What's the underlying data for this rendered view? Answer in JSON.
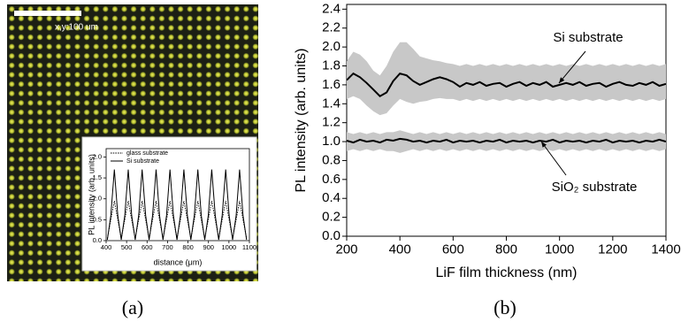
{
  "chart_data": [
    {
      "type": "line",
      "panel_label": "(a)",
      "scale_bar_label": "x,y:100 um",
      "xlabel": "distance (μm)",
      "ylabel": "PL intensity (arb. units)",
      "xlim": [
        400,
        1100
      ],
      "xticks": [
        400,
        500,
        600,
        700,
        800,
        900,
        1000,
        1100
      ],
      "ylim": [
        0,
        2.2
      ],
      "yticks": [
        {
          "value": 0,
          "label": "0.0"
        },
        0.5,
        {
          "value": 1,
          "label": "1.0"
        },
        1.5,
        {
          "value": 2,
          "label": "2.0"
        }
      ],
      "legend": "upper left",
      "x": [
        406,
        423,
        440,
        457,
        474,
        491,
        508,
        525,
        542,
        559,
        576,
        593,
        610,
        627,
        644,
        661,
        678,
        695,
        712,
        729,
        746,
        763,
        780,
        797,
        814,
        831,
        848,
        865,
        882,
        899,
        916,
        933,
        950,
        967,
        984,
        1001,
        1018,
        1035,
        1052,
        1069,
        1086
      ],
      "series": [
        {
          "name": "glass substrate",
          "color": "#000000",
          "style": "dotted",
          "values": [
            0.05,
            0.5,
            0.95,
            0.5,
            0.05,
            0.5,
            0.95,
            0.5,
            0.05,
            0.5,
            0.95,
            0.5,
            0.05,
            0.5,
            0.95,
            0.5,
            0.05,
            0.5,
            0.95,
            0.5,
            0.05,
            0.5,
            0.95,
            0.5,
            0.05,
            0.5,
            0.95,
            0.5,
            0.05,
            0.5,
            0.95,
            0.5,
            0.05,
            0.5,
            0.95,
            0.5,
            0.05,
            0.5,
            0.95,
            0.5,
            0.05
          ]
        },
        {
          "name": "Si substrate",
          "color": "#000000",
          "style": "solid",
          "values": [
            0.02,
            0.6,
            1.7,
            0.6,
            0.02,
            0.6,
            1.7,
            0.6,
            0.02,
            0.6,
            1.7,
            0.6,
            0.02,
            0.6,
            1.7,
            0.6,
            0.02,
            0.6,
            1.7,
            0.6,
            0.02,
            0.6,
            1.7,
            0.6,
            0.02,
            0.6,
            1.7,
            0.6,
            0.02,
            0.6,
            1.7,
            0.6,
            0.02,
            0.6,
            1.7,
            0.6,
            0.02,
            0.6,
            1.7,
            0.6,
            0.02
          ]
        }
      ]
    },
    {
      "type": "band",
      "panel_label": "(b)",
      "xlabel": "LiF film thickness (nm)",
      "ylabel": "PL intensity (arb. units)",
      "xlim": [
        200,
        1400
      ],
      "xticks": [
        200,
        400,
        600,
        800,
        1000,
        1200,
        1400
      ],
      "ylim": [
        0,
        2.45
      ],
      "yticks": [
        {
          "value": 0,
          "label": "0.0"
        },
        0.2,
        0.4,
        0.6,
        0.8,
        {
          "value": 1,
          "label": "1.0"
        },
        1.2,
        1.4,
        1.6,
        1.8,
        {
          "value": 2,
          "label": "2.0"
        },
        2.2,
        2.4
      ],
      "band_color": "#c8c8c8",
      "x": [
        200,
        225,
        250,
        275,
        300,
        325,
        350,
        375,
        400,
        425,
        450,
        475,
        500,
        525,
        550,
        575,
        600,
        625,
        650,
        675,
        700,
        725,
        750,
        775,
        800,
        825,
        850,
        875,
        900,
        925,
        950,
        975,
        1000,
        1025,
        1050,
        1075,
        1100,
        1125,
        1150,
        1175,
        1200,
        1225,
        1250,
        1275,
        1300,
        1325,
        1350,
        1375,
        1400
      ],
      "series": [
        {
          "name": "Si substrate",
          "color": "#000000",
          "values": [
            1.65,
            1.72,
            1.68,
            1.62,
            1.55,
            1.48,
            1.52,
            1.64,
            1.72,
            1.7,
            1.64,
            1.6,
            1.63,
            1.66,
            1.68,
            1.66,
            1.63,
            1.58,
            1.62,
            1.6,
            1.63,
            1.59,
            1.61,
            1.62,
            1.58,
            1.61,
            1.63,
            1.59,
            1.62,
            1.6,
            1.63,
            1.58,
            1.6,
            1.62,
            1.6,
            1.63,
            1.59,
            1.61,
            1.62,
            1.58,
            1.61,
            1.63,
            1.6,
            1.59,
            1.62,
            1.6,
            1.63,
            1.59,
            1.61
          ],
          "upper": [
            1.85,
            1.95,
            1.92,
            1.85,
            1.75,
            1.7,
            1.8,
            1.95,
            2.05,
            2.05,
            1.98,
            1.9,
            1.88,
            1.86,
            1.85,
            1.83,
            1.82,
            1.8,
            1.82,
            1.8,
            1.82,
            1.8,
            1.82,
            1.8,
            1.82,
            1.8,
            1.82,
            1.8,
            1.82,
            1.8,
            1.82,
            1.8,
            1.82,
            1.8,
            1.82,
            1.8,
            1.82,
            1.8,
            1.82,
            1.8,
            1.82,
            1.8,
            1.82,
            1.8,
            1.82,
            1.8,
            1.82,
            1.8,
            1.82
          ],
          "lower": [
            1.45,
            1.48,
            1.45,
            1.38,
            1.32,
            1.28,
            1.3,
            1.38,
            1.45,
            1.42,
            1.4,
            1.42,
            1.43,
            1.45,
            1.46,
            1.45,
            1.45,
            1.43,
            1.45,
            1.43,
            1.45,
            1.43,
            1.45,
            1.43,
            1.45,
            1.43,
            1.45,
            1.43,
            1.45,
            1.43,
            1.45,
            1.43,
            1.45,
            1.43,
            1.45,
            1.43,
            1.45,
            1.43,
            1.45,
            1.43,
            1.45,
            1.43,
            1.45,
            1.43,
            1.45,
            1.43,
            1.45,
            1.43,
            1.45
          ]
        },
        {
          "name": "SiO₂ substrate",
          "color": "#000000",
          "values": [
            1.01,
            0.99,
            1.02,
            1.0,
            1.01,
            0.99,
            1.02,
            1.01,
            1.03,
            1.02,
            1.0,
            1.01,
            0.99,
            1.01,
            1.0,
            1.02,
            0.99,
            1.01,
            1.0,
            1.01,
            0.99,
            1.01,
            1.0,
            1.02,
            0.99,
            1.01,
            1.0,
            1.01,
            0.99,
            1.01,
            1.0,
            1.02,
            0.99,
            1.01,
            1.0,
            1.01,
            0.99,
            1.01,
            1.0,
            1.02,
            0.99,
            1.01,
            1.0,
            1.01,
            0.99,
            1.01,
            1.0,
            1.02,
            1.0
          ],
          "upper": [
            1.1,
            1.08,
            1.1,
            1.08,
            1.1,
            1.08,
            1.1,
            1.1,
            1.12,
            1.1,
            1.08,
            1.1,
            1.08,
            1.1,
            1.08,
            1.1,
            1.08,
            1.1,
            1.08,
            1.1,
            1.08,
            1.1,
            1.08,
            1.1,
            1.08,
            1.1,
            1.08,
            1.1,
            1.08,
            1.1,
            1.08,
            1.1,
            1.08,
            1.1,
            1.08,
            1.1,
            1.08,
            1.1,
            1.08,
            1.1,
            1.08,
            1.1,
            1.08,
            1.1,
            1.08,
            1.1,
            1.08,
            1.1,
            1.08
          ],
          "lower": [
            0.9,
            0.92,
            0.9,
            0.92,
            0.9,
            0.92,
            0.9,
            0.9,
            0.88,
            0.9,
            0.92,
            0.9,
            0.92,
            0.9,
            0.92,
            0.9,
            0.92,
            0.9,
            0.92,
            0.9,
            0.92,
            0.9,
            0.92,
            0.9,
            0.92,
            0.9,
            0.92,
            0.9,
            0.92,
            0.9,
            0.92,
            0.9,
            0.92,
            0.9,
            0.92,
            0.9,
            0.92,
            0.9,
            0.92,
            0.9,
            0.92,
            0.9,
            0.92,
            0.9,
            0.92,
            0.9,
            0.92,
            0.9,
            0.92
          ]
        }
      ]
    }
  ]
}
